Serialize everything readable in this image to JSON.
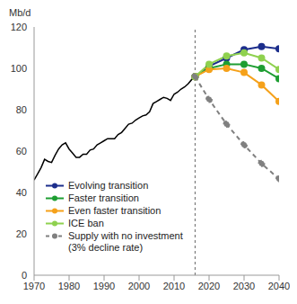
{
  "chart_data": {
    "type": "line",
    "y_label": "Mb/d",
    "xlim": [
      1970,
      2040
    ],
    "xticks": [
      1970,
      1980,
      1990,
      2000,
      2010,
      2020,
      2030,
      2040
    ],
    "ylim": [
      0,
      120
    ],
    "yticks": [
      0,
      20,
      40,
      60,
      80,
      100,
      120
    ],
    "grid": false,
    "legend": "lower left",
    "vline_x": 2016,
    "series": [
      {
        "color": "#000000",
        "marker": "none",
        "line_style": "solid",
        "x": [
          1970,
          1971,
          1972,
          1973,
          1974,
          1975,
          1976,
          1977,
          1978,
          1979,
          1980,
          1981,
          1982,
          1983,
          1984,
          1985,
          1986,
          1987,
          1988,
          1989,
          1990,
          1991,
          1992,
          1993,
          1994,
          1995,
          1996,
          1997,
          1998,
          1999,
          2000,
          2001,
          2002,
          2003,
          2004,
          2005,
          2006,
          2007,
          2008,
          2009,
          2010,
          2011,
          2012,
          2013,
          2014,
          2015,
          2016
        ],
        "values": [
          46,
          49,
          52,
          56,
          55,
          54.5,
          58,
          61,
          63,
          64,
          61,
          59,
          57,
          57,
          58.5,
          58.5,
          60.5,
          61,
          63,
          64,
          65,
          66,
          66,
          66,
          68,
          69,
          71,
          73,
          73.5,
          75,
          76,
          77,
          77.5,
          79,
          83,
          84,
          85,
          86,
          85.5,
          84.5,
          87.5,
          88.5,
          90,
          91,
          92.5,
          94.5,
          96
        ]
      },
      {
        "name": "Evolving transition",
        "color": "#1c2e8c",
        "marker": "circle",
        "line_style": "solid",
        "x": [
          2016,
          2020,
          2025,
          2030,
          2035,
          2040
        ],
        "values": [
          96,
          101,
          105,
          109,
          110.5,
          109.5
        ]
      },
      {
        "name": "Faster transition",
        "color": "#1e9e32",
        "marker": "circle",
        "line_style": "solid",
        "x": [
          2016,
          2020,
          2025,
          2030,
          2035,
          2040
        ],
        "values": [
          96,
          100,
          102,
          102,
          100,
          95
        ]
      },
      {
        "name": "Even faster transition",
        "color": "#f5a11a",
        "marker": "circle",
        "line_style": "solid",
        "x": [
          2016,
          2020,
          2025,
          2030,
          2035,
          2040
        ],
        "values": [
          96,
          99.5,
          100,
          98,
          92,
          84
        ]
      },
      {
        "name": "ICE ban",
        "color": "#8fd14f",
        "marker": "circle",
        "line_style": "solid",
        "x": [
          2016,
          2020,
          2025,
          2030,
          2035,
          2040
        ],
        "values": [
          96,
          102,
          106,
          107.5,
          105,
          99.5
        ]
      },
      {
        "name": "Supply with no investment (3% decline rate)",
        "color": "#808080",
        "marker": "circle",
        "line_style": "dashed",
        "x": [
          2016,
          2020,
          2025,
          2030,
          2035,
          2040
        ],
        "values": [
          96,
          85,
          73,
          63,
          54,
          46.5
        ]
      }
    ]
  }
}
